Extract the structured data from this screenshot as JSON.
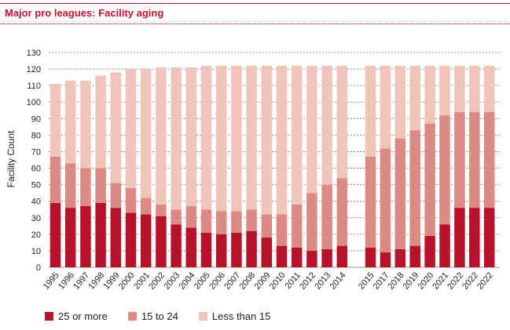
{
  "title": "Major pro leagues: Facility aging",
  "colors": {
    "accent": "#c8102e",
    "series": [
      "#b8112a",
      "#dc8a84",
      "#f0c5b9"
    ]
  },
  "chart_data": {
    "type": "bar",
    "stacked": true,
    "ylabel": "Facility Count",
    "xlabel": "",
    "ylim": [
      0,
      130
    ],
    "yticks": [
      0,
      10,
      20,
      30,
      40,
      50,
      60,
      70,
      80,
      90,
      100,
      110,
      120,
      130
    ],
    "grid": true,
    "legend_position": "bottom-left",
    "categories": [
      "1995",
      "1996",
      "1997",
      "1998",
      "1999",
      "2000",
      "2001",
      "2002",
      "2003",
      "2004",
      "2005",
      "2006",
      "2007",
      "2008",
      "2009",
      "2010",
      "2011",
      "2012",
      "2013",
      "2014",
      "2015",
      "2017",
      "2018",
      "2019",
      "2020",
      "2021",
      "2022",
      "2022",
      "2022"
    ],
    "series": [
      {
        "name": "25 or more",
        "values": [
          39,
          36,
          37,
          39,
          36,
          33,
          32,
          31,
          26,
          24,
          21,
          20,
          21,
          22,
          18,
          13,
          12,
          10,
          11,
          13,
          12,
          9,
          11,
          13,
          19,
          26,
          36,
          36,
          36
        ]
      },
      {
        "name": "15 to 24",
        "values": [
          28,
          27,
          23,
          21,
          15,
          15,
          10,
          7,
          9,
          13,
          14,
          14,
          13,
          13,
          14,
          19,
          26,
          35,
          39,
          41,
          55,
          63,
          67,
          70,
          68,
          66,
          58,
          58,
          58
        ]
      },
      {
        "name": "Less than 15",
        "values": [
          44,
          50,
          53,
          56,
          67,
          72,
          78,
          83,
          86,
          84,
          87,
          88,
          88,
          87,
          90,
          90,
          84,
          77,
          72,
          68,
          55,
          50,
          44,
          39,
          35,
          30,
          28,
          28,
          28
        ]
      }
    ]
  }
}
